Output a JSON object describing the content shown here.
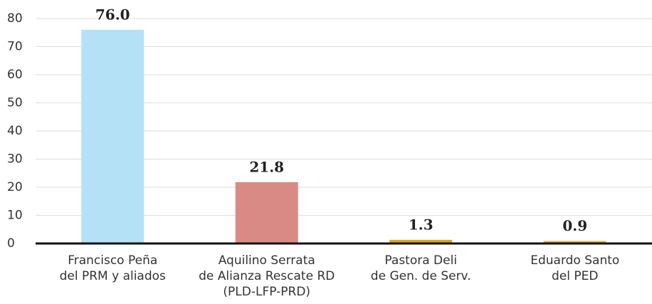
{
  "chart_data": {
    "type": "bar",
    "categories": [
      [
        "Francisco Peña",
        "del PRM y aliados"
      ],
      [
        "Aquilino Serrata",
        "de Alianza Rescate RD",
        "(PLD-LFP-PRD)"
      ],
      [
        "Pastora Deli",
        "de Gen. de Serv."
      ],
      [
        "Eduardo Santo",
        "del PED"
      ]
    ],
    "values": [
      76,
      21.8,
      1.3,
      0.9
    ],
    "value_labels": [
      "76.0",
      "21.8",
      "1.3",
      "0.9"
    ],
    "colors": [
      "#b5e1f6",
      "#d98a84",
      "#d9a520",
      "#d6b450"
    ],
    "ylim": [
      0,
      80
    ],
    "yticks": [
      0,
      10,
      20,
      30,
      40,
      50,
      60,
      70,
      80
    ],
    "grid": true
  }
}
